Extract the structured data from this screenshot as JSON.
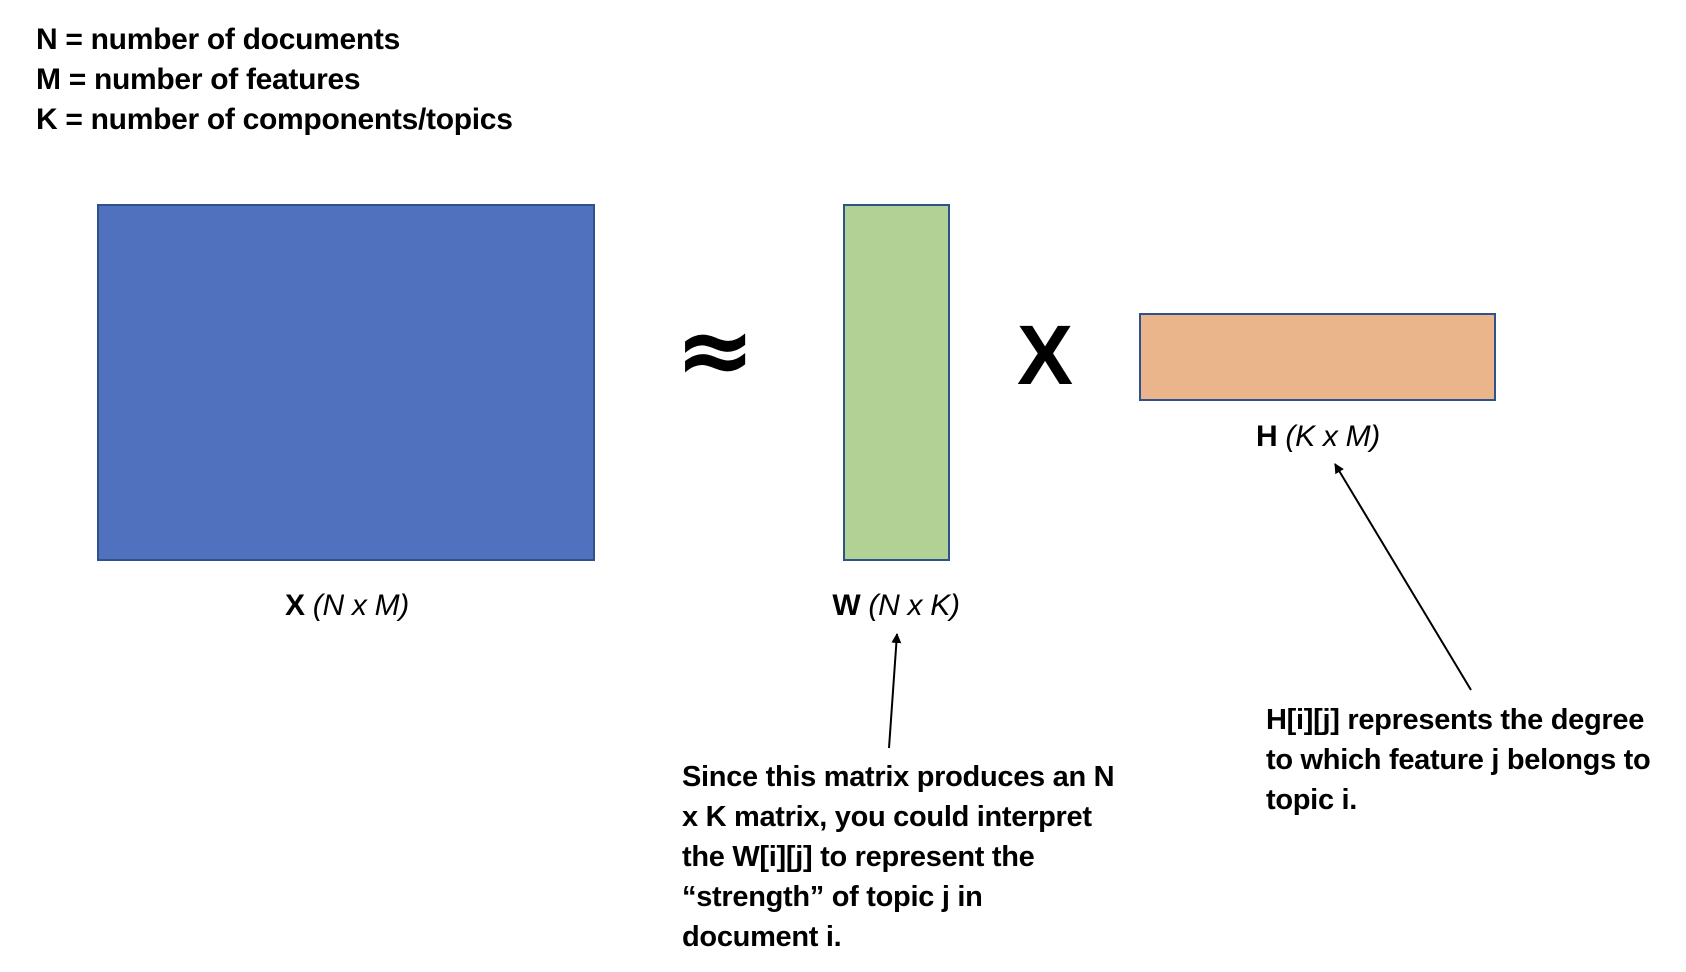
{
  "definitions": [
    "N = number of documents",
    "M = number of features",
    "K = number of components/topics"
  ],
  "operators": {
    "approx": "≈",
    "times": "X"
  },
  "matrices": {
    "x": {
      "name": "X",
      "dims": "(N x M)",
      "color": "#4F71BE"
    },
    "w": {
      "name": "W",
      "dims": "(N x K)",
      "color": "#B2D194"
    },
    "h": {
      "name": "H",
      "dims": "(K x M)",
      "color": "#EAB58B"
    }
  },
  "annotations": {
    "w": "Since this matrix produces an N x K matrix, you could interpret the W[i][j] to represent the “strength” of topic j in document i.",
    "h": "H[i][j] represents the degree to which feature j belongs to topic i."
  }
}
